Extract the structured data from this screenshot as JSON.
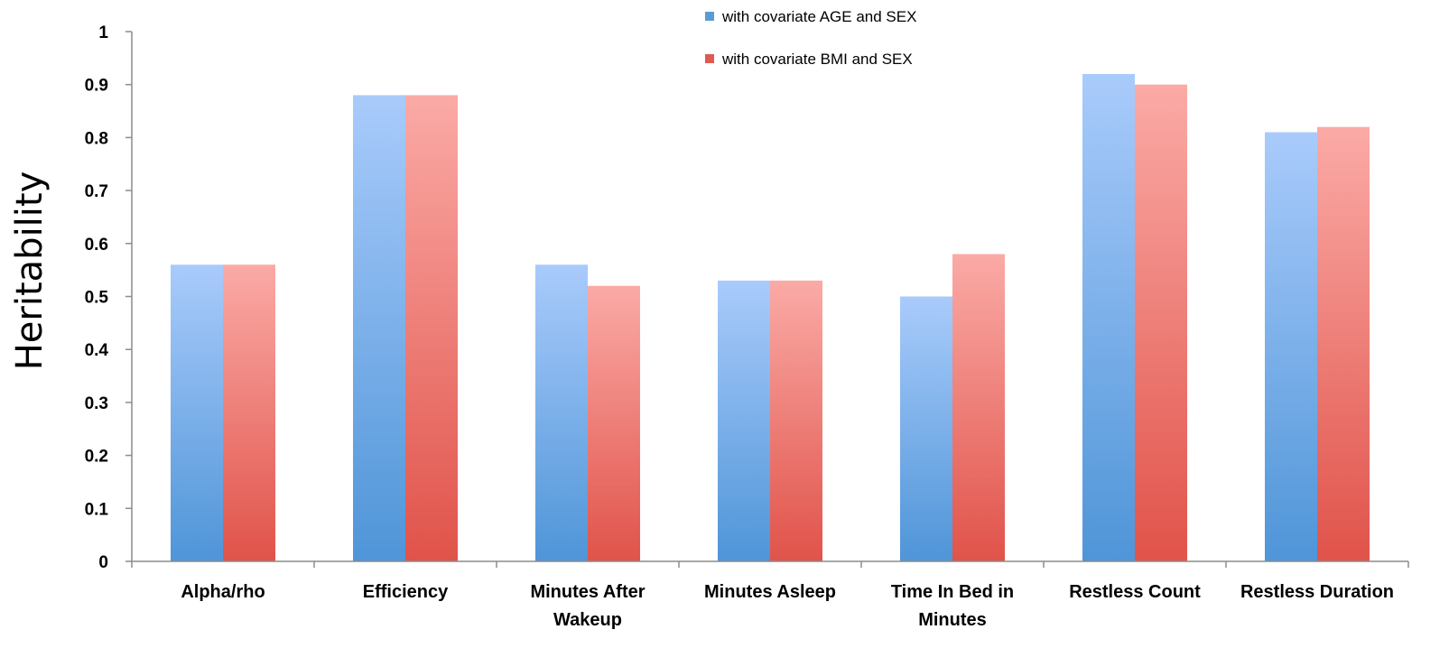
{
  "chart_data": {
    "type": "bar",
    "ylabel": "Heritability",
    "xlabel": "",
    "ylim": [
      0,
      1
    ],
    "yticks": [
      "0",
      "0.1",
      "0.2",
      "0.3",
      "0.4",
      "0.5",
      "0.6",
      "0.7",
      "0.8",
      "0.9",
      "1"
    ],
    "ytick_values": [
      0,
      0.1,
      0.2,
      0.3,
      0.4,
      0.5,
      0.6,
      0.7,
      0.8,
      0.9,
      1
    ],
    "grid": false,
    "legend_position": "top-center",
    "categories": [
      [
        "Alpha/rho"
      ],
      [
        "Efficiency"
      ],
      [
        "Minutes After",
        "Wakeup"
      ],
      [
        "Minutes Asleep"
      ],
      [
        "Time In Bed in",
        "Minutes"
      ],
      [
        "Restless Count"
      ],
      [
        "Restless Duration"
      ]
    ],
    "series": [
      {
        "name": "with covariate AGE and SEX",
        "color_top": "#a9cbfb",
        "color_bottom": "#4f95d8",
        "legend_color": "#5b9bd5",
        "values": [
          0.56,
          0.88,
          0.56,
          0.53,
          0.5,
          0.92,
          0.81
        ]
      },
      {
        "name": "with covariate BMI and SEX",
        "color_top": "#fbaaa6",
        "color_bottom": "#e0534a",
        "legend_color": "#e05a52",
        "values": [
          0.56,
          0.88,
          0.52,
          0.53,
          0.58,
          0.9,
          0.82
        ]
      }
    ]
  }
}
